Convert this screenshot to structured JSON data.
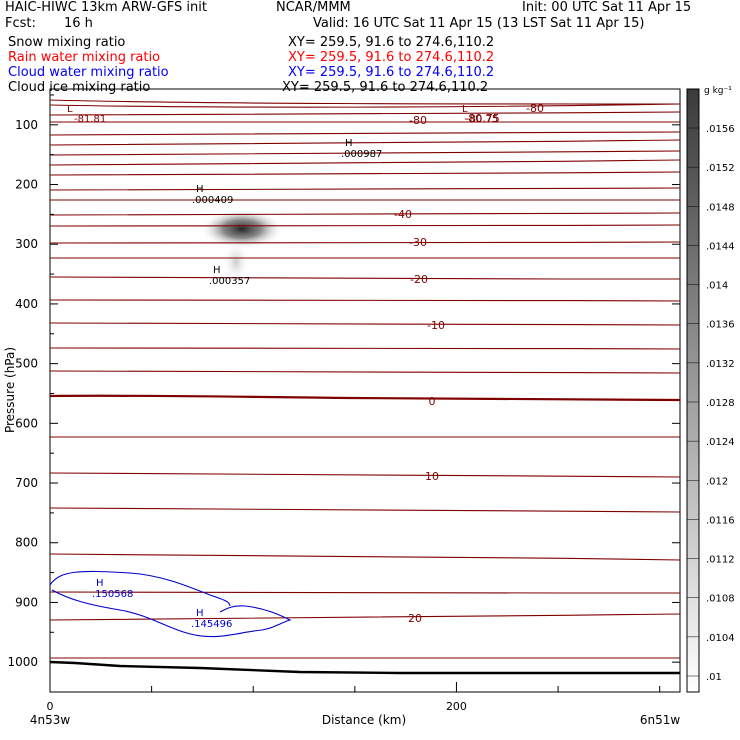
{
  "header": {
    "model": "HAIC-HIWC 13km ARW-GFS init",
    "org": "NCAR/MMM",
    "init": "Init: 00 UTC Sat 11 Apr 15",
    "fcst_label": "Fcst:",
    "fcst_value": "16 h",
    "valid": "Valid: 16 UTC Sat 11 Apr 15 (13 LST Sat 11 Apr 15)"
  },
  "legend": [
    {
      "name": "Snow mixing ratio",
      "xy": "XY= 259.5, 91.6 to 274.6,110.2",
      "color": "#000000"
    },
    {
      "name": "Rain water mixing ratio",
      "xy": "XY= 259.5, 91.6 to 274.6,110.2",
      "color": "#ff0000"
    },
    {
      "name": "Cloud water mixing ratio",
      "xy": "XY= 259.5, 91.6 to 274.6,110.2",
      "color": "#0000ff"
    },
    {
      "name": "Cloud ice mixing ratio",
      "xy": "XY= 259.5, 91.6 to 274.6,110.2",
      "color": "#000000"
    }
  ],
  "chart_data": {
    "type": "contour-cross-section",
    "ylabel": "Pressure (hPa)",
    "xlabel": "Distance (km)",
    "x_endpoints": {
      "left": "4n53w",
      "right": "6n51w"
    },
    "x_ticks": [
      0,
      200
    ],
    "xlim": [
      0,
      310
    ],
    "y_ticks": [
      100,
      200,
      300,
      400,
      500,
      600,
      700,
      800,
      900,
      1000
    ],
    "ylim": [
      1050,
      40
    ],
    "temperature_labels": [
      "-80",
      "-80",
      "-80.75",
      "-81.81",
      "-40",
      "-30",
      "-20",
      "-10",
      "0",
      "10",
      "20"
    ],
    "temperature_color": "#800000",
    "extrema": [
      {
        "mark": "L",
        "value": "-81.81",
        "field": "temperature"
      },
      {
        "mark": "L",
        "value": "-80.75",
        "field": "temperature"
      },
      {
        "mark": "H",
        "value": ".000987",
        "field": "ice"
      },
      {
        "mark": "H",
        "value": ".000409",
        "field": "ice"
      },
      {
        "mark": "H",
        "value": ".000357",
        "field": "ice"
      },
      {
        "mark": "H",
        "value": ".150568",
        "field": "cloud water"
      },
      {
        "mark": "H",
        "value": ".145496",
        "field": "cloud water"
      }
    ],
    "cloud_water_color": "#0000cc",
    "colorbar": {
      "unit": "g kg⁻¹",
      "levels": [
        ".01",
        ".0104",
        ".0108",
        ".0112",
        ".0116",
        ".012",
        ".0124",
        ".0128",
        ".0132",
        ".0136",
        ".014",
        ".0144",
        ".0148",
        ".0152",
        ".0156"
      ]
    }
  }
}
